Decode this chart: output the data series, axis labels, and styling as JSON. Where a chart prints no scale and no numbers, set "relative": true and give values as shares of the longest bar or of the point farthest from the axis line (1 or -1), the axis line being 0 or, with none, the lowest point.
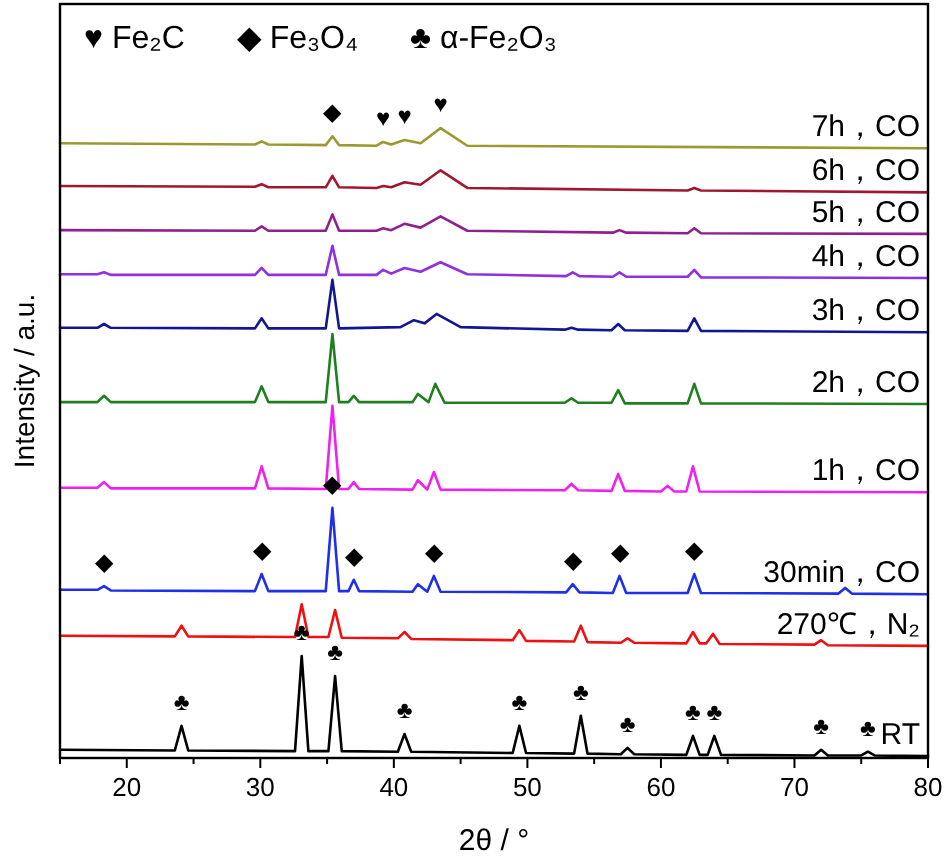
{
  "chart_data": {
    "type": "line",
    "relative": true,
    "xlabel": "2θ / °",
    "ylabel": "Intensity / a.u.",
    "xlim": [
      15,
      80
    ],
    "xticks": [
      {
        "value": 15,
        "label": null
      },
      20,
      {
        "value": 25,
        "label": null
      },
      30,
      {
        "value": 35,
        "label": null
      },
      40,
      {
        "value": 45,
        "label": null
      },
      50,
      {
        "value": 55,
        "label": null
      },
      60,
      {
        "value": 65,
        "label": null
      },
      70,
      {
        "value": 75,
        "label": null
      },
      80
    ],
    "line_style": "solid",
    "series": [
      {
        "name": "7h，CO",
        "color": "#9a9a30",
        "x": [
          15,
          29.6,
          30.1,
          30.6,
          34.9,
          35.4,
          35.9,
          38.7,
          39.2,
          39.8,
          40.8,
          42.0,
          43.5,
          45.5,
          80
        ],
        "values": [
          0.976,
          0.974,
          0.979,
          0.974,
          0.973,
          0.987,
          0.973,
          0.972,
          0.978,
          0.974,
          0.981,
          0.976,
          1.0,
          0.972,
          0.968
        ]
      },
      {
        "name": "6h，CO",
        "color": "#a01830",
        "x": [
          15,
          29.6,
          30.1,
          30.6,
          34.9,
          35.4,
          35.9,
          38.7,
          39.2,
          39.8,
          40.8,
          42.0,
          43.5,
          45.5,
          62.0,
          62.5,
          63.0,
          80
        ],
        "values": [
          0.908,
          0.907,
          0.911,
          0.906,
          0.906,
          0.924,
          0.906,
          0.905,
          0.908,
          0.906,
          0.914,
          0.91,
          0.933,
          0.905,
          0.901,
          0.905,
          0.901,
          0.898
        ]
      },
      {
        "name": "5h，CO",
        "color": "#902090",
        "x": [
          15,
          29.6,
          30.1,
          30.6,
          34.9,
          35.4,
          35.9,
          38.7,
          39.2,
          39.8,
          40.8,
          42.0,
          43.5,
          45.5,
          56.4,
          56.9,
          57.4,
          62.0,
          62.5,
          63.0,
          80
        ],
        "values": [
          0.838,
          0.837,
          0.844,
          0.837,
          0.837,
          0.863,
          0.837,
          0.837,
          0.841,
          0.838,
          0.848,
          0.842,
          0.86,
          0.837,
          0.834,
          0.838,
          0.834,
          0.833,
          0.841,
          0.833,
          0.832
        ]
      },
      {
        "name": "4h，CO",
        "color": "#9030e0",
        "x": [
          15,
          17.8,
          18.3,
          18.8,
          29.6,
          30.1,
          30.6,
          34.9,
          35.4,
          35.9,
          38.7,
          39.2,
          39.8,
          40.8,
          42.0,
          43.5,
          45.5,
          52.9,
          53.4,
          53.9,
          56.4,
          56.9,
          57.4,
          62.0,
          62.5,
          63.0,
          80
        ],
        "values": [
          0.768,
          0.768,
          0.771,
          0.767,
          0.767,
          0.778,
          0.767,
          0.767,
          0.813,
          0.767,
          0.767,
          0.775,
          0.769,
          0.778,
          0.772,
          0.787,
          0.768,
          0.765,
          0.771,
          0.765,
          0.764,
          0.771,
          0.764,
          0.764,
          0.775,
          0.763,
          0.762
        ]
      },
      {
        "name": "3h，CO",
        "color": "#101890",
        "x": [
          15,
          17.8,
          18.3,
          18.8,
          29.6,
          30.1,
          30.6,
          34.9,
          35.4,
          35.9,
          40.5,
          41.5,
          42.3,
          43.2,
          45.0,
          52.8,
          53.3,
          53.8,
          56.3,
          56.8,
          57.3,
          62.0,
          62.5,
          63.0,
          80
        ],
        "values": [
          0.683,
          0.683,
          0.689,
          0.683,
          0.682,
          0.698,
          0.682,
          0.682,
          0.759,
          0.682,
          0.684,
          0.695,
          0.69,
          0.705,
          0.684,
          0.68,
          0.683,
          0.68,
          0.679,
          0.689,
          0.679,
          0.678,
          0.698,
          0.678,
          0.676
        ]
      },
      {
        "name": "2h，CO",
        "color": "#208020",
        "x": [
          15,
          17.8,
          18.3,
          18.8,
          29.6,
          30.1,
          30.6,
          34.9,
          35.4,
          35.9,
          36.6,
          37.0,
          37.4,
          41.4,
          41.8,
          42.6,
          43.1,
          43.8,
          52.8,
          53.3,
          53.8,
          56.3,
          56.8,
          57.3,
          62.0,
          62.5,
          63.0,
          80
        ],
        "values": [
          0.565,
          0.565,
          0.575,
          0.565,
          0.565,
          0.59,
          0.565,
          0.565,
          0.673,
          0.565,
          0.565,
          0.575,
          0.565,
          0.565,
          0.578,
          0.565,
          0.594,
          0.564,
          0.564,
          0.571,
          0.564,
          0.564,
          0.584,
          0.563,
          0.563,
          0.594,
          0.563,
          0.562
        ]
      },
      {
        "name": "1h，CO",
        "color": "#f020f0",
        "x": [
          15,
          17.8,
          18.3,
          18.8,
          29.6,
          30.1,
          30.6,
          34.9,
          35.4,
          35.9,
          36.6,
          37.0,
          37.4,
          41.4,
          41.8,
          42.5,
          43.0,
          43.5,
          52.8,
          53.3,
          53.8,
          56.3,
          56.8,
          57.3,
          60.0,
          60.5,
          61.0,
          61.9,
          62.4,
          62.9,
          80
        ],
        "values": [
          0.429,
          0.429,
          0.438,
          0.428,
          0.428,
          0.463,
          0.428,
          0.427,
          0.559,
          0.427,
          0.427,
          0.438,
          0.427,
          0.426,
          0.441,
          0.426,
          0.454,
          0.426,
          0.425,
          0.435,
          0.425,
          0.424,
          0.451,
          0.424,
          0.423,
          0.432,
          0.423,
          0.423,
          0.463,
          0.423,
          0.422
        ]
      },
      {
        "name": "30min，CO",
        "color": "#2030e8",
        "x": [
          15,
          17.8,
          18.3,
          18.8,
          29.6,
          30.1,
          30.6,
          34.9,
          35.4,
          35.9,
          36.6,
          37.0,
          37.4,
          41.4,
          41.8,
          42.5,
          43.0,
          43.5,
          52.9,
          53.4,
          53.9,
          56.4,
          56.9,
          57.4,
          62.0,
          62.5,
          63.0,
          73.3,
          73.8,
          74.3,
          80
        ],
        "values": [
          0.267,
          0.267,
          0.273,
          0.266,
          0.265,
          0.292,
          0.265,
          0.265,
          0.397,
          0.265,
          0.265,
          0.283,
          0.265,
          0.264,
          0.276,
          0.264,
          0.289,
          0.264,
          0.263,
          0.276,
          0.263,
          0.262,
          0.289,
          0.262,
          0.262,
          0.292,
          0.262,
          0.261,
          0.27,
          0.261,
          0.26
        ]
      },
      {
        "name": "270℃，N₂",
        "color": "#f01010",
        "x": [
          15,
          23.6,
          24.1,
          24.6,
          32.6,
          33.1,
          33.6,
          35.1,
          35.6,
          36.1,
          40.3,
          40.8,
          41.3,
          48.9,
          49.4,
          49.9,
          53.5,
          54.0,
          54.5,
          57.0,
          57.5,
          58.0,
          61.9,
          62.4,
          62.9,
          63.4,
          63.9,
          64.4,
          71.5,
          72.0,
          72.5,
          80
        ],
        "values": [
          0.194,
          0.193,
          0.21,
          0.193,
          0.192,
          0.244,
          0.192,
          0.192,
          0.235,
          0.191,
          0.19,
          0.2,
          0.189,
          0.187,
          0.203,
          0.186,
          0.185,
          0.21,
          0.184,
          0.183,
          0.19,
          0.183,
          0.182,
          0.2,
          0.182,
          0.182,
          0.197,
          0.181,
          0.18,
          0.187,
          0.179,
          0.178
        ]
      },
      {
        "name": "RT",
        "color": "#000000",
        "x": [
          15,
          23.6,
          24.1,
          24.6,
          32.6,
          33.1,
          33.6,
          35.1,
          35.6,
          36.1,
          40.3,
          40.8,
          41.3,
          48.9,
          49.4,
          49.9,
          53.5,
          54.0,
          54.5,
          57.0,
          57.5,
          58.0,
          61.9,
          62.4,
          62.9,
          63.5,
          64.0,
          64.5,
          71.5,
          72.0,
          72.5,
          75.0,
          75.5,
          76.0,
          80
        ],
        "values": [
          0.013,
          0.012,
          0.051,
          0.012,
          0.011,
          0.162,
          0.011,
          0.011,
          0.13,
          0.011,
          0.01,
          0.038,
          0.01,
          0.008,
          0.051,
          0.008,
          0.007,
          0.067,
          0.007,
          0.006,
          0.016,
          0.006,
          0.005,
          0.035,
          0.005,
          0.005,
          0.035,
          0.005,
          0.004,
          0.013,
          0.004,
          0.004,
          0.01,
          0.004,
          0.003
        ]
      }
    ],
    "annotations": [
      "♥ Fe₂C",
      "◆ Fe₃O₄",
      "♣ α-Fe₂O₃",
      {
        "text": "◆",
        "x": 35.4,
        "y": 0.987
      },
      {
        "text": "♥",
        "x": 39.2,
        "y": 0.978
      },
      {
        "text": "♥",
        "x": 40.8,
        "y": 0.981
      },
      {
        "text": "♥",
        "x": 43.5,
        "y": 1.0
      },
      {
        "text": "◆",
        "x": 18.3,
        "y": 0.273
      },
      {
        "text": "◆",
        "x": 30.1,
        "y": 0.292
      },
      {
        "text": "◆",
        "x": 35.4,
        "y": 0.397
      },
      {
        "text": "◆",
        "x": 37.0,
        "y": 0.283
      },
      {
        "text": "◆",
        "x": 43.0,
        "y": 0.289
      },
      {
        "text": "◆",
        "x": 53.4,
        "y": 0.276
      },
      {
        "text": "◆",
        "x": 56.9,
        "y": 0.289
      },
      {
        "text": "◆",
        "x": 62.5,
        "y": 0.292
      },
      {
        "text": "♣",
        "x": 24.1,
        "y": 0.051
      },
      {
        "text": "♣",
        "x": 33.1,
        "y": 0.162
      },
      {
        "text": "♣",
        "x": 35.6,
        "y": 0.13
      },
      {
        "text": "♣",
        "x": 40.8,
        "y": 0.038
      },
      {
        "text": "♣",
        "x": 49.4,
        "y": 0.051
      },
      {
        "text": "♣",
        "x": 54.0,
        "y": 0.067
      },
      {
        "text": "♣",
        "x": 57.5,
        "y": 0.016
      },
      {
        "text": "♣",
        "x": 62.4,
        "y": 0.035
      },
      {
        "text": "♣",
        "x": 64.0,
        "y": 0.035
      },
      {
        "text": "♣",
        "x": 72.0,
        "y": 0.013
      },
      {
        "text": "♣",
        "x": 75.5,
        "y": 0.01
      }
    ]
  }
}
